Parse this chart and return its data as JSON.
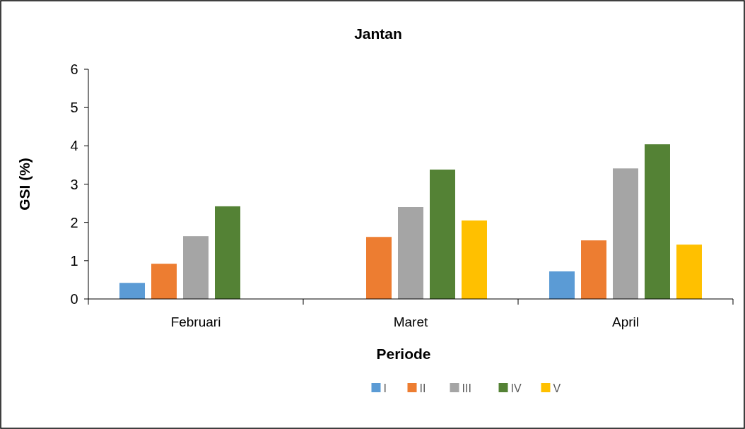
{
  "chart_data": {
    "type": "bar",
    "title": "Jantan",
    "xlabel": "Periode",
    "ylabel": "GSI (%)",
    "categories": [
      "Februari",
      "Maret",
      "April"
    ],
    "series": [
      {
        "name": "I",
        "color": "#5b9bd5",
        "values": [
          0.42,
          null,
          0.72
        ]
      },
      {
        "name": "II",
        "color": "#ed7d31",
        "values": [
          0.92,
          1.62,
          1.53
        ]
      },
      {
        "name": "III",
        "color": "#a5a5a5",
        "values": [
          1.64,
          2.4,
          3.41
        ]
      },
      {
        "name": "IV",
        "color": "#548235",
        "values": [
          2.42,
          3.38,
          4.04
        ]
      },
      {
        "name": "V",
        "color": "#ffc000",
        "values": [
          null,
          2.05,
          1.42
        ]
      }
    ],
    "ylim": [
      0,
      6
    ],
    "yticks": [
      0,
      1,
      2,
      3,
      4,
      5,
      6
    ],
    "grid": false,
    "legend": "bottom"
  }
}
